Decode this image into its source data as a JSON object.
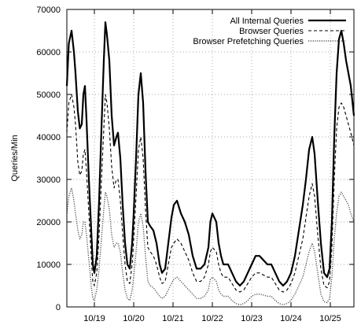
{
  "chart_data": {
    "type": "line",
    "title": "",
    "xlabel": "",
    "ylabel": "Queries/Min",
    "ylim": [
      0,
      70000
    ],
    "yticks": [
      0,
      10000,
      20000,
      30000,
      40000,
      50000,
      60000,
      70000
    ],
    "yticklabels": [
      "0",
      "10000",
      "20000",
      "30000",
      "40000",
      "50000",
      "60000",
      "70000"
    ],
    "xlim": [
      0,
      7.3
    ],
    "xticks": [
      0.7,
      1.7,
      2.7,
      3.7,
      4.7,
      5.7,
      6.7
    ],
    "xticklabels": [
      "10/19",
      "10/20",
      "10/21",
      "10/22",
      "10/23",
      "10/24",
      "10/25"
    ],
    "grid": true,
    "legend_position": "top-right",
    "series": [
      {
        "name": "All Internal Queries",
        "style": "solid-thick",
        "x": [
          0.0,
          0.05,
          0.12,
          0.18,
          0.22,
          0.28,
          0.33,
          0.38,
          0.42,
          0.46,
          0.5,
          0.56,
          0.62,
          0.66,
          0.7,
          0.76,
          0.82,
          0.88,
          0.94,
          0.98,
          1.02,
          1.08,
          1.14,
          1.2,
          1.26,
          1.3,
          1.36,
          1.42,
          1.48,
          1.54,
          1.6,
          1.66,
          1.7,
          1.76,
          1.82,
          1.88,
          1.94,
          2.0,
          2.06,
          2.12,
          2.2,
          2.28,
          2.36,
          2.42,
          2.5,
          2.58,
          2.66,
          2.72,
          2.8,
          2.9,
          3.0,
          3.1,
          3.2,
          3.3,
          3.4,
          3.5,
          3.6,
          3.65,
          3.7,
          3.75,
          3.8,
          3.86,
          3.92,
          3.98,
          4.04,
          4.1,
          4.2,
          4.3,
          4.4,
          4.5,
          4.6,
          4.7,
          4.8,
          4.9,
          5.0,
          5.1,
          5.2,
          5.3,
          5.4,
          5.5,
          5.6,
          5.7,
          5.8,
          5.9,
          6.0,
          6.08,
          6.16,
          6.24,
          6.3,
          6.38,
          6.46,
          6.54,
          6.62,
          6.68,
          6.74,
          6.8,
          6.86,
          6.92,
          6.98,
          7.04,
          7.1,
          7.16,
          7.22,
          7.3
        ],
        "values": [
          52000,
          62000,
          65000,
          60000,
          55000,
          46000,
          42000,
          43000,
          50000,
          52000,
          44000,
          30000,
          18000,
          10000,
          8000,
          12000,
          25000,
          42000,
          58000,
          67000,
          64000,
          58000,
          45000,
          38000,
          40000,
          41000,
          35000,
          24000,
          15000,
          10000,
          9000,
          15000,
          22000,
          35000,
          50000,
          55000,
          48000,
          32000,
          20000,
          19000,
          18000,
          15000,
          10000,
          8000,
          9000,
          15000,
          21000,
          24000,
          25000,
          22000,
          20000,
          17000,
          12000,
          9000,
          9000,
          10000,
          14000,
          20000,
          22000,
          21000,
          20000,
          15000,
          12000,
          10000,
          10000,
          10000,
          8000,
          6000,
          5000,
          6000,
          8000,
          10000,
          12000,
          12000,
          11000,
          10000,
          10000,
          8000,
          6000,
          5000,
          6000,
          8000,
          12000,
          18000,
          24000,
          30000,
          37000,
          40000,
          36000,
          25000,
          15000,
          8000,
          7000,
          9000,
          20000,
          40000,
          55000,
          63000,
          65000,
          62000,
          58000,
          55000,
          52000,
          45000
        ]
      },
      {
        "name": "Browser Queries",
        "style": "dashed",
        "x": [
          0.0,
          0.05,
          0.12,
          0.18,
          0.22,
          0.28,
          0.33,
          0.38,
          0.42,
          0.46,
          0.5,
          0.56,
          0.62,
          0.66,
          0.7,
          0.76,
          0.82,
          0.88,
          0.94,
          0.98,
          1.02,
          1.08,
          1.14,
          1.2,
          1.26,
          1.3,
          1.36,
          1.42,
          1.48,
          1.54,
          1.6,
          1.66,
          1.7,
          1.76,
          1.82,
          1.88,
          1.94,
          2.0,
          2.06,
          2.12,
          2.2,
          2.28,
          2.36,
          2.42,
          2.5,
          2.58,
          2.66,
          2.72,
          2.8,
          2.9,
          3.0,
          3.1,
          3.2,
          3.3,
          3.4,
          3.5,
          3.6,
          3.65,
          3.7,
          3.75,
          3.8,
          3.86,
          3.92,
          3.98,
          4.04,
          4.1,
          4.2,
          4.3,
          4.4,
          4.5,
          4.6,
          4.7,
          4.8,
          4.9,
          5.0,
          5.1,
          5.2,
          5.3,
          5.4,
          5.5,
          5.6,
          5.7,
          5.8,
          5.9,
          6.0,
          6.08,
          6.16,
          6.24,
          6.3,
          6.38,
          6.46,
          6.54,
          6.62,
          6.68,
          6.74,
          6.8,
          6.86,
          6.92,
          6.98,
          7.04,
          7.1,
          7.16,
          7.22,
          7.3
        ],
        "values": [
          41000,
          48000,
          50000,
          47000,
          43000,
          34000,
          31000,
          32000,
          36000,
          37000,
          32000,
          22000,
          12000,
          6000,
          5000,
          8000,
          17000,
          30000,
          42000,
          50000,
          48000,
          42000,
          33000,
          28000,
          30000,
          30000,
          25000,
          17000,
          10000,
          6000,
          5500,
          10000,
          16000,
          26000,
          37000,
          40000,
          35000,
          23000,
          14000,
          13000,
          12000,
          10000,
          7000,
          5500,
          6000,
          10000,
          14000,
          15000,
          16000,
          15000,
          13000,
          11000,
          8000,
          6000,
          6000,
          7000,
          10000,
          13000,
          14000,
          13500,
          13000,
          10000,
          8000,
          7000,
          7000,
          7000,
          5500,
          4000,
          3500,
          4000,
          5500,
          7000,
          8000,
          8000,
          7500,
          7000,
          7000,
          5500,
          4000,
          3500,
          4000,
          5500,
          8000,
          12000,
          16000,
          21000,
          26000,
          29000,
          26000,
          17000,
          9000,
          5000,
          4500,
          6000,
          14000,
          30000,
          42000,
          47000,
          48000,
          47000,
          45000,
          43000,
          41000,
          38000
        ]
      },
      {
        "name": "Browser Prefetching Queries",
        "style": "dotted",
        "x": [
          0.0,
          0.05,
          0.12,
          0.18,
          0.22,
          0.28,
          0.33,
          0.38,
          0.42,
          0.46,
          0.5,
          0.56,
          0.62,
          0.66,
          0.7,
          0.76,
          0.82,
          0.88,
          0.94,
          0.98,
          1.02,
          1.08,
          1.14,
          1.2,
          1.26,
          1.3,
          1.36,
          1.42,
          1.48,
          1.54,
          1.6,
          1.66,
          1.7,
          1.76,
          1.82,
          1.88,
          1.94,
          2.0,
          2.06,
          2.12,
          2.2,
          2.28,
          2.36,
          2.42,
          2.5,
          2.58,
          2.66,
          2.72,
          2.8,
          2.9,
          3.0,
          3.1,
          3.2,
          3.3,
          3.4,
          3.5,
          3.6,
          3.65,
          3.7,
          3.75,
          3.8,
          3.86,
          3.92,
          3.98,
          4.04,
          4.1,
          4.2,
          4.3,
          4.4,
          4.5,
          4.6,
          4.7,
          4.8,
          4.9,
          5.0,
          5.1,
          5.2,
          5.3,
          5.4,
          5.5,
          5.6,
          5.7,
          5.8,
          5.9,
          6.0,
          6.08,
          6.16,
          6.24,
          6.3,
          6.38,
          6.46,
          6.54,
          6.62,
          6.68,
          6.74,
          6.8,
          6.86,
          6.92,
          6.98,
          7.04,
          7.1,
          7.16,
          7.22,
          7.3
        ],
        "values": [
          22000,
          26000,
          28000,
          25000,
          22000,
          18000,
          16000,
          17000,
          20000,
          20000,
          17000,
          11000,
          5000,
          2000,
          1500,
          4000,
          9000,
          16000,
          23000,
          27000,
          26000,
          23000,
          17000,
          14000,
          15000,
          15000,
          13000,
          8000,
          4000,
          2000,
          1500,
          4000,
          7000,
          13000,
          20000,
          22000,
          19000,
          12000,
          6000,
          5000,
          4500,
          3500,
          2500,
          2000,
          2500,
          4000,
          5500,
          6500,
          7000,
          6000,
          5000,
          4000,
          3000,
          2000,
          2000,
          2500,
          4000,
          6500,
          7000,
          6500,
          6000,
          4000,
          3000,
          2500,
          2500,
          2500,
          1500,
          800,
          500,
          800,
          1500,
          2500,
          3000,
          3000,
          2800,
          2500,
          2500,
          1500,
          800,
          500,
          800,
          1500,
          3000,
          5000,
          7000,
          10000,
          13000,
          15000,
          13000,
          8000,
          3000,
          1200,
          1000,
          2000,
          7000,
          16000,
          22000,
          26000,
          27000,
          26000,
          25000,
          24000,
          22000,
          20000
        ]
      }
    ]
  }
}
